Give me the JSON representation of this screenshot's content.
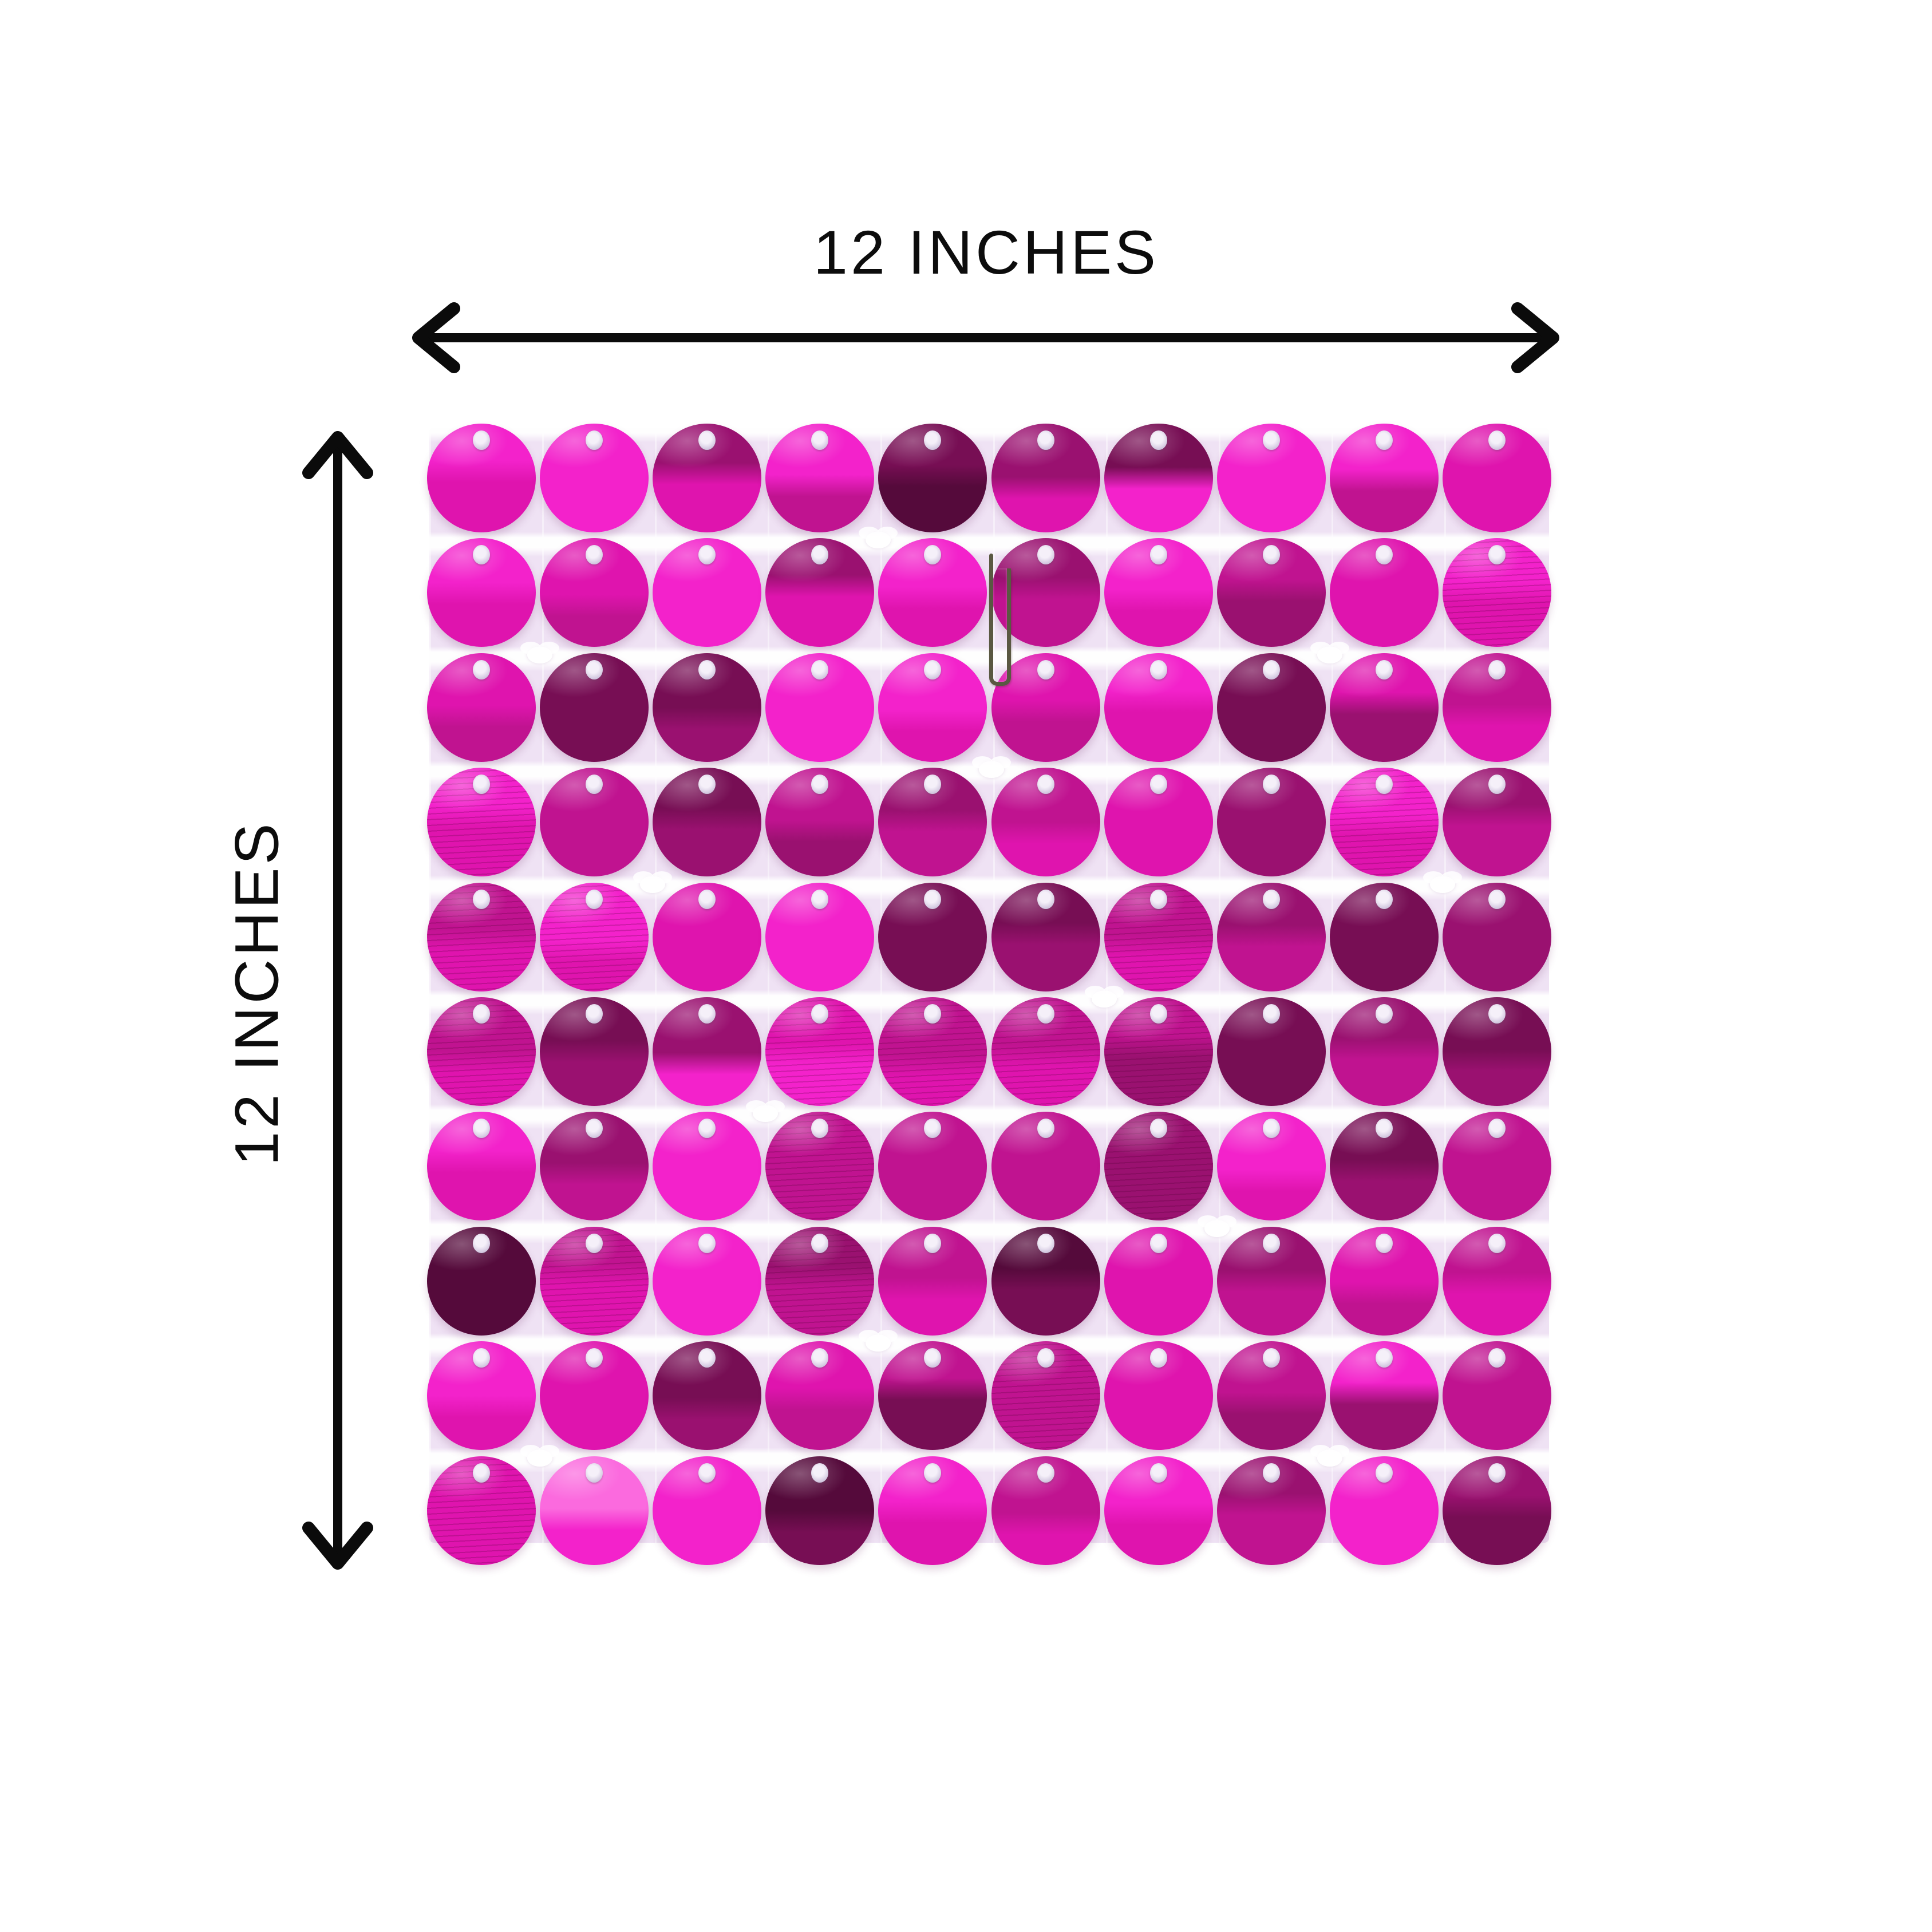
{
  "diagram": {
    "width_label": "12 INCHES",
    "height_label": "12 INCHES",
    "arrow_color": "#0b0b0b",
    "background_color": "#ffffff"
  },
  "panel": {
    "rows": 10,
    "cols": 10,
    "backing_color": "#efe2f4",
    "rivet_color": "#d9cde6",
    "hook_pin_color": "#5a5842",
    "palette": [
      "#fb6ade",
      "#f322cb",
      "#df14ae",
      "#c01390",
      "#9a1170",
      "#770e54",
      "#550a3b"
    ],
    "grid": [
      [
        [
          1,
          2,
          0
        ],
        [
          1,
          1,
          0
        ],
        [
          4,
          2,
          0
        ],
        [
          1,
          3,
          0
        ],
        [
          5,
          6,
          0
        ],
        [
          4,
          2,
          0
        ],
        [
          5,
          1,
          0
        ],
        [
          1,
          1,
          0
        ],
        [
          1,
          3,
          0
        ],
        [
          2,
          2,
          0
        ]
      ],
      [
        [
          1,
          2,
          0
        ],
        [
          2,
          3,
          0
        ],
        [
          1,
          1,
          0
        ],
        [
          4,
          2,
          0
        ],
        [
          1,
          2,
          0
        ],
        [
          4,
          3,
          0
        ],
        [
          1,
          2,
          0
        ],
        [
          3,
          4,
          0
        ],
        [
          2,
          2,
          0
        ],
        [
          1,
          2,
          1
        ]
      ],
      [
        [
          2,
          3,
          0
        ],
        [
          5,
          5,
          0
        ],
        [
          5,
          4,
          0
        ],
        [
          1,
          1,
          0
        ],
        [
          1,
          2,
          0
        ],
        [
          2,
          3,
          0
        ],
        [
          1,
          2,
          0
        ],
        [
          5,
          5,
          0
        ],
        [
          2,
          4,
          0
        ],
        [
          3,
          2,
          0
        ]
      ],
      [
        [
          1,
          2,
          1
        ],
        [
          3,
          3,
          0
        ],
        [
          5,
          4,
          0
        ],
        [
          3,
          4,
          0
        ],
        [
          4,
          3,
          0
        ],
        [
          3,
          2,
          0
        ],
        [
          2,
          2,
          0
        ],
        [
          4,
          4,
          0
        ],
        [
          1,
          2,
          1
        ],
        [
          4,
          3,
          0
        ]
      ],
      [
        [
          3,
          2,
          1
        ],
        [
          1,
          2,
          1
        ],
        [
          2,
          2,
          0
        ],
        [
          1,
          1,
          0
        ],
        [
          5,
          5,
          0
        ],
        [
          5,
          4,
          0
        ],
        [
          3,
          2,
          1
        ],
        [
          4,
          3,
          0
        ],
        [
          5,
          5,
          0
        ],
        [
          4,
          4,
          0
        ]
      ],
      [
        [
          3,
          2,
          1
        ],
        [
          5,
          4,
          0
        ],
        [
          4,
          1,
          0
        ],
        [
          2,
          1,
          1
        ],
        [
          3,
          2,
          1
        ],
        [
          3,
          2,
          1
        ],
        [
          3,
          4,
          1
        ],
        [
          5,
          5,
          0
        ],
        [
          4,
          3,
          0
        ],
        [
          5,
          4,
          0
        ]
      ],
      [
        [
          1,
          2,
          0
        ],
        [
          4,
          3,
          0
        ],
        [
          1,
          1,
          0
        ],
        [
          3,
          3,
          1
        ],
        [
          3,
          3,
          0
        ],
        [
          3,
          3,
          0
        ],
        [
          4,
          4,
          1
        ],
        [
          1,
          2,
          0
        ],
        [
          5,
          4,
          0
        ],
        [
          3,
          3,
          0
        ]
      ],
      [
        [
          6,
          6,
          0
        ],
        [
          3,
          2,
          1
        ],
        [
          1,
          1,
          0
        ],
        [
          4,
          3,
          1
        ],
        [
          3,
          2,
          0
        ],
        [
          6,
          5,
          0
        ],
        [
          2,
          2,
          0
        ],
        [
          4,
          3,
          0
        ],
        [
          2,
          3,
          0
        ],
        [
          3,
          2,
          0
        ]
      ],
      [
        [
          1,
          2,
          0
        ],
        [
          2,
          2,
          0
        ],
        [
          5,
          4,
          0
        ],
        [
          2,
          3,
          0
        ],
        [
          3,
          5,
          0
        ],
        [
          3,
          3,
          1
        ],
        [
          2,
          2,
          0
        ],
        [
          3,
          4,
          0
        ],
        [
          1,
          4,
          0
        ],
        [
          3,
          3,
          0
        ]
      ],
      [
        [
          2,
          2,
          1
        ],
        [
          0,
          1,
          0
        ],
        [
          1,
          1,
          0
        ],
        [
          6,
          5,
          0
        ],
        [
          1,
          2,
          0
        ],
        [
          3,
          2,
          0
        ],
        [
          1,
          2,
          0
        ],
        [
          4,
          3,
          0
        ],
        [
          1,
          1,
          0
        ],
        [
          4,
          5,
          0
        ]
      ]
    ]
  }
}
